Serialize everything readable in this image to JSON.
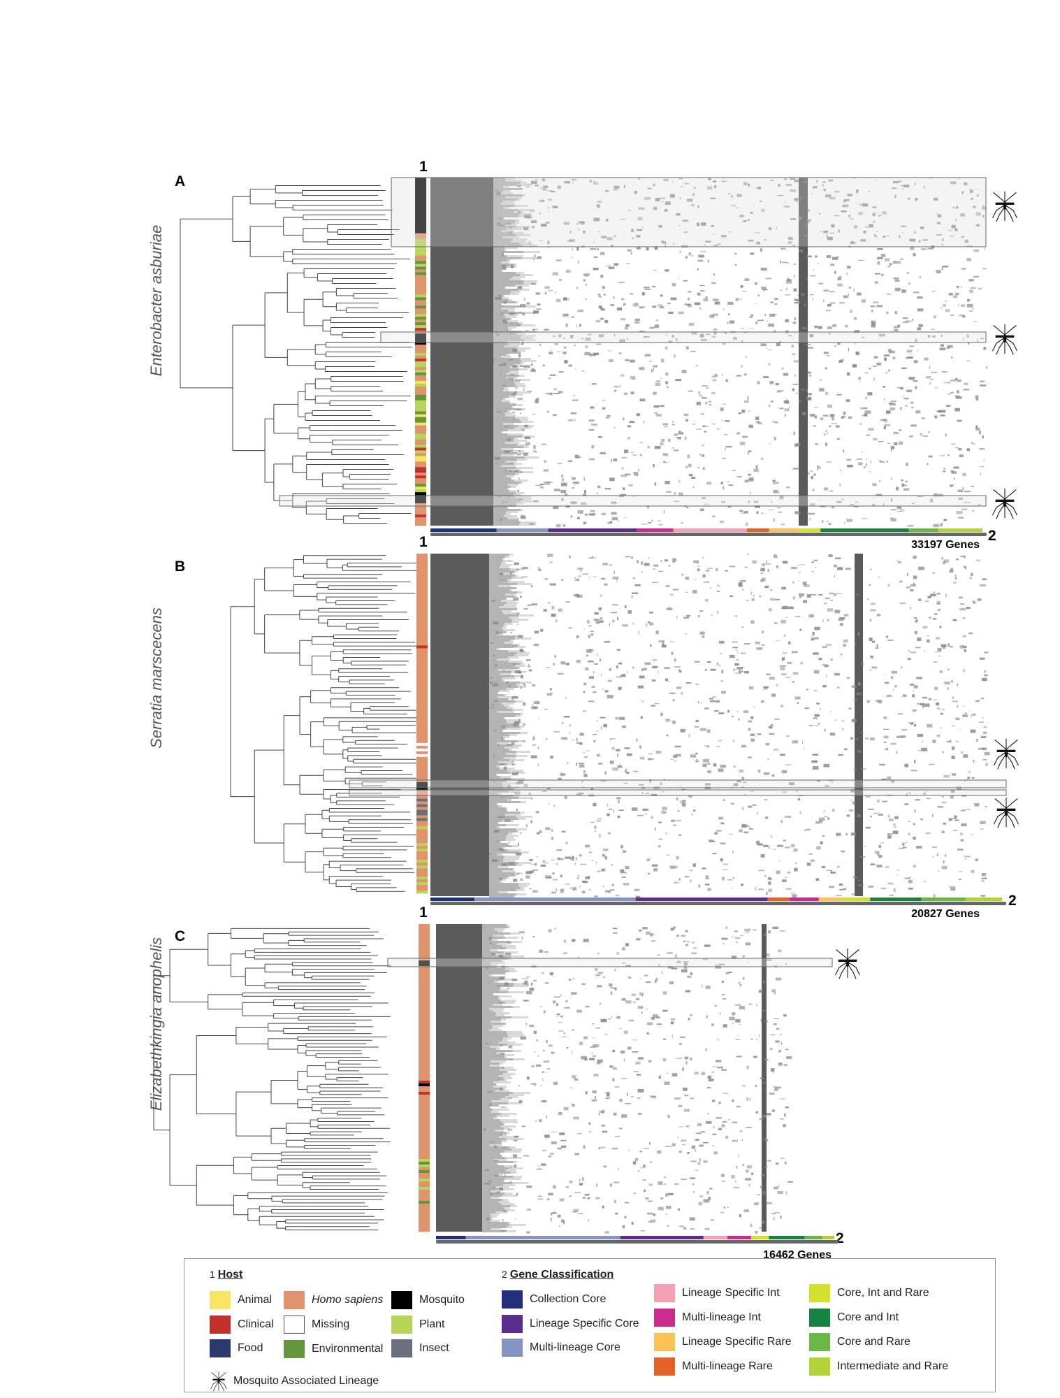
{
  "panels": [
    {
      "letter": "A",
      "species": "Enterobacter asburiae",
      "track1": "1",
      "track2": "2",
      "genes": "33197 Genes"
    },
    {
      "letter": "B",
      "species": "Serratia marscecens",
      "track1": "1",
      "track2": "2",
      "genes": "20827 Genes"
    },
    {
      "letter": "C",
      "species": "Elizabethkingia anophelis",
      "track1": "1",
      "track2": "2",
      "genes": "16462 Genes"
    }
  ],
  "legend": {
    "host": {
      "number": "1",
      "title": "Host",
      "items": [
        {
          "label": "Animal",
          "color": "#f7e463"
        },
        {
          "label": "Clinical",
          "color": "#c3312d"
        },
        {
          "label": "Food",
          "color": "#2a3a6e"
        },
        {
          "label": "Homo sapiens",
          "color": "#e0946c"
        },
        {
          "label": "Missing",
          "color": "#ffffff"
        },
        {
          "label": "Environmental",
          "color": "#63963e"
        },
        {
          "label": "Mosquito",
          "color": "#000000"
        },
        {
          "label": "Plant",
          "color": "#b7d659"
        },
        {
          "label": "Insect",
          "color": "#6a6f7e"
        }
      ]
    },
    "gene_classification": {
      "number": "2",
      "title": "Gene Classification",
      "items": [
        {
          "label": "Collection Core",
          "color": "#222f7c"
        },
        {
          "label": "Lineage Specific Core",
          "color": "#5b2d8c"
        },
        {
          "label": "Multi-lineage Core",
          "color": "#8593c6"
        },
        {
          "label": "Lineage Specific Int",
          "color": "#f2a0b2"
        },
        {
          "label": "Multi-lineage Int",
          "color": "#c92c8c"
        },
        {
          "label": "Lineage Specific Rare",
          "color": "#fbc357"
        },
        {
          "label": "Multi-lineage Rare",
          "color": "#e2622a"
        },
        {
          "label": "Core, Int and Rare",
          "color": "#d3e02c"
        },
        {
          "label": "Core and Int",
          "color": "#168241"
        },
        {
          "label": "Core and Rare",
          "color": "#6ab647"
        },
        {
          "label": "Intermediate and Rare",
          "color": "#b2d235"
        }
      ]
    },
    "mosquito_lineage": "Mosquito Associated Lineage"
  }
}
